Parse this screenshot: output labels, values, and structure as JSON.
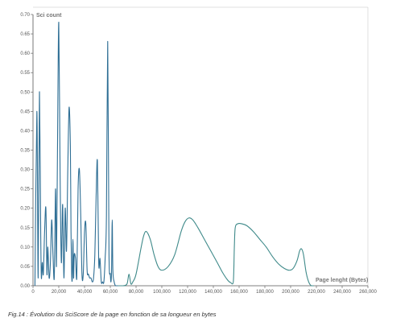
{
  "chart_data": {
    "type": "line",
    "xlabel": "Page lenght (Bytes)",
    "ylabel": "Sci count",
    "xlim": [
      0,
      260000
    ],
    "ylim": [
      0,
      0.7
    ],
    "x_ticks": [
      0,
      20000,
      40000,
      60000,
      80000,
      100000,
      120000,
      140000,
      160000,
      180000,
      200000,
      220000,
      240000,
      260000
    ],
    "x_tick_labels": [
      "0",
      "20,000",
      "40,000",
      "60,000",
      "80,000",
      "100,000",
      "120,000",
      "140,000",
      "160,000",
      "180,000",
      "200,000",
      "220,000",
      "240,000",
      "260,000"
    ],
    "y_ticks": [
      0,
      0.05,
      0.1,
      0.15,
      0.2,
      0.25,
      0.3,
      0.35,
      0.4,
      0.45,
      0.5,
      0.55,
      0.6,
      0.65,
      0.7
    ],
    "y_tick_labels": [
      "0.00",
      "0.05",
      "0.10",
      "0.15",
      "0.20",
      "0.25",
      "0.30",
      "0.35",
      "0.40",
      "0.45",
      "0.50",
      "0.55",
      "0.60",
      "0.65",
      "0.70"
    ],
    "grid": false,
    "series": [
      {
        "color": "#2f6f95",
        "x": [
          1500,
          3000,
          4000,
          5000,
          6000,
          6500,
          7200,
          8000,
          9000,
          10000,
          10800,
          11500,
          12500,
          13500,
          14500,
          15500,
          16500,
          17500,
          18200,
          19000,
          20000,
          21000,
          22000,
          23000,
          24000,
          25000,
          26000,
          27000,
          28000,
          29000,
          29500,
          30000,
          30500,
          31000,
          31500,
          32000,
          33000,
          34000,
          35000,
          36000,
          37000,
          38000,
          39000,
          40000,
          41000,
          42000,
          43000,
          44000,
          45000,
          46000,
          47000,
          48000,
          49000,
          50000,
          51000,
          52000,
          53000,
          54000,
          55000,
          56000,
          57000,
          58000,
          59000,
          60000,
          60500,
          61000,
          61500,
          62000,
          63000,
          64000,
          65000,
          66000
        ],
        "y": [
          0,
          0.45,
          0.02,
          0.5,
          0.13,
          0.02,
          0.06,
          0.03,
          0.14,
          0.2,
          0.03,
          0.1,
          0.02,
          0.06,
          0.17,
          0.08,
          0.02,
          0.25,
          0.05,
          0.35,
          0.68,
          0.3,
          0.06,
          0.21,
          0.02,
          0.2,
          0.09,
          0.3,
          0.46,
          0.36,
          0.14,
          0.03,
          0.02,
          0.12,
          0.02,
          0.08,
          0.07,
          0.02,
          0.25,
          0.3,
          0.19,
          0.03,
          0.03,
          0.14,
          0.16,
          0.04,
          0.03,
          0.02,
          0.02,
          0.01,
          0.02,
          0.08,
          0.23,
          0.32,
          0.06,
          0.07,
          0.01,
          0.01,
          0.01,
          0.07,
          0.18,
          0.63,
          0.08,
          0.03,
          0.01,
          0.04,
          0.17,
          0.04,
          0.01,
          0,
          0,
          0
        ]
      },
      {
        "color": "#3f8a8a",
        "x": [
          66000,
          70000,
          73000,
          74500,
          76000,
          77500,
          80000,
          84000,
          86000,
          88000,
          91000,
          94000,
          97000,
          100000,
          105000,
          110000,
          115000,
          118000,
          121000,
          124000,
          128000,
          133000,
          138000,
          143000,
          147000,
          151000,
          153500,
          155500,
          156300,
          157000,
          159000,
          162000,
          166000,
          171000,
          176000,
          181000,
          186000,
          191000,
          195000,
          199000,
          202000,
          205000,
          207000,
          208500,
          210000,
          212000,
          214000,
          216000,
          218000
        ],
        "y": [
          0,
          0,
          0.005,
          0.03,
          0.005,
          0.01,
          0.03,
          0.1,
          0.13,
          0.14,
          0.12,
          0.08,
          0.05,
          0.04,
          0.05,
          0.08,
          0.14,
          0.165,
          0.175,
          0.17,
          0.15,
          0.12,
          0.09,
          0.06,
          0.035,
          0.015,
          0.008,
          0.01,
          0.1,
          0.15,
          0.16,
          0.16,
          0.155,
          0.14,
          0.12,
          0.1,
          0.075,
          0.055,
          0.045,
          0.04,
          0.045,
          0.065,
          0.09,
          0.095,
          0.08,
          0.035,
          0.01,
          0,
          0
        ]
      }
    ]
  },
  "caption": "Fig.14 : Évolution du SciScore de la page en fonction de sa longueur en bytes"
}
